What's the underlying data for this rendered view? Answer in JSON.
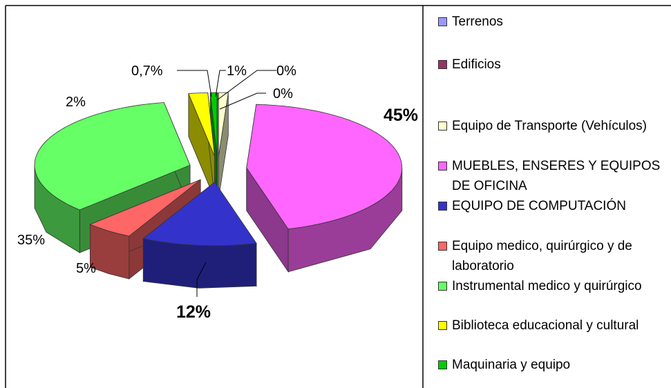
{
  "chart_data": {
    "type": "pie3d",
    "categories": [
      "Terrenos",
      "Edificios",
      "Equipo de Transporte (Vehículos)",
      "MUEBLES, ENSERES Y EQUIPOS DE OFICINA",
      "EQUIPO DE COMPUTACIÓN",
      "Equipo medico, quirúrgico y de laboratorio",
      "Instrumental medico y quirúrgico",
      "Biblioteca educacional y cultural",
      "Maquinaria y equipo"
    ],
    "values": [
      0,
      0,
      1,
      45,
      12,
      5,
      35,
      2,
      0.7
    ],
    "value_labels": [
      "0%",
      "0%",
      "1%",
      "45%",
      "12%",
      "5%",
      "35%",
      "2%",
      "0,7%"
    ],
    "colors": [
      "#9999ff",
      "#993366",
      "#ffffcc",
      "#ff66ff",
      "#3333cc",
      "#ff6666",
      "#66ff66",
      "#ffff00",
      "#00cc00"
    ],
    "legend": "right"
  }
}
